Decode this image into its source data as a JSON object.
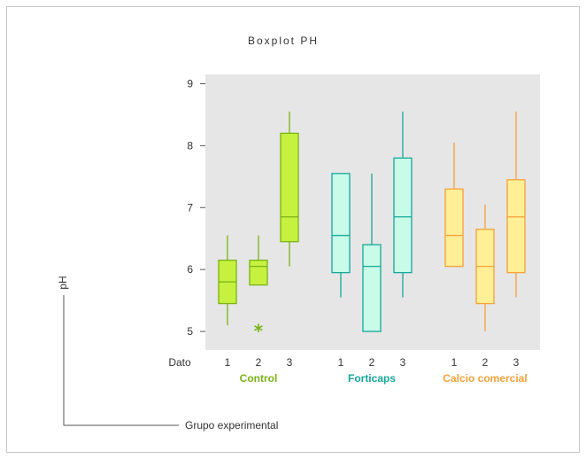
{
  "chart_data": {
    "type": "boxplot",
    "title": "Boxplot PH",
    "ylabel": "pH",
    "xlabel": "Grupo experimental",
    "x_row_label": "Dato",
    "ylim": [
      4.7,
      9.15
    ],
    "yticks": [
      5,
      6,
      7,
      8,
      9
    ],
    "ytick_labels": [
      "5",
      "6",
      "7",
      "8",
      "9"
    ],
    "grid": false,
    "groups": [
      {
        "name": "Control",
        "color": "#7ab317",
        "fill": "#c6f23f",
        "boxes": [
          {
            "label": "1",
            "min": 5.1,
            "q1": 5.45,
            "median": 5.8,
            "q3": 6.15,
            "max": 6.55
          },
          {
            "label": "2",
            "min": 5.75,
            "q1": 5.75,
            "median": 6.05,
            "q3": 6.15,
            "max": 6.55,
            "outliers": [
              5.05
            ]
          },
          {
            "label": "3",
            "min": 6.05,
            "q1": 6.45,
            "median": 6.85,
            "q3": 8.2,
            "max": 8.55
          }
        ]
      },
      {
        "name": "Forticaps",
        "color": "#16a89a",
        "fill": "#c8fbe8",
        "boxes": [
          {
            "label": "1",
            "min": 5.55,
            "q1": 5.95,
            "median": 6.55,
            "q3": 7.55,
            "max": 7.55
          },
          {
            "label": "2",
            "min": 5.0,
            "q1": 5.0,
            "median": 6.05,
            "q3": 6.4,
            "max": 7.55
          },
          {
            "label": "3",
            "min": 5.55,
            "q1": 5.95,
            "median": 6.85,
            "q3": 7.8,
            "max": 8.55
          }
        ]
      },
      {
        "name": "Calcio comercial",
        "color": "#f5a23a",
        "fill": "#ffef96",
        "boxes": [
          {
            "label": "1",
            "min": 6.05,
            "q1": 6.05,
            "median": 6.55,
            "q3": 7.3,
            "max": 8.05
          },
          {
            "label": "2",
            "min": 5.0,
            "q1": 5.45,
            "median": 6.05,
            "q3": 6.65,
            "max": 7.05
          },
          {
            "label": "3",
            "min": 5.55,
            "q1": 5.95,
            "median": 6.85,
            "q3": 7.45,
            "max": 8.55
          }
        ]
      }
    ]
  }
}
